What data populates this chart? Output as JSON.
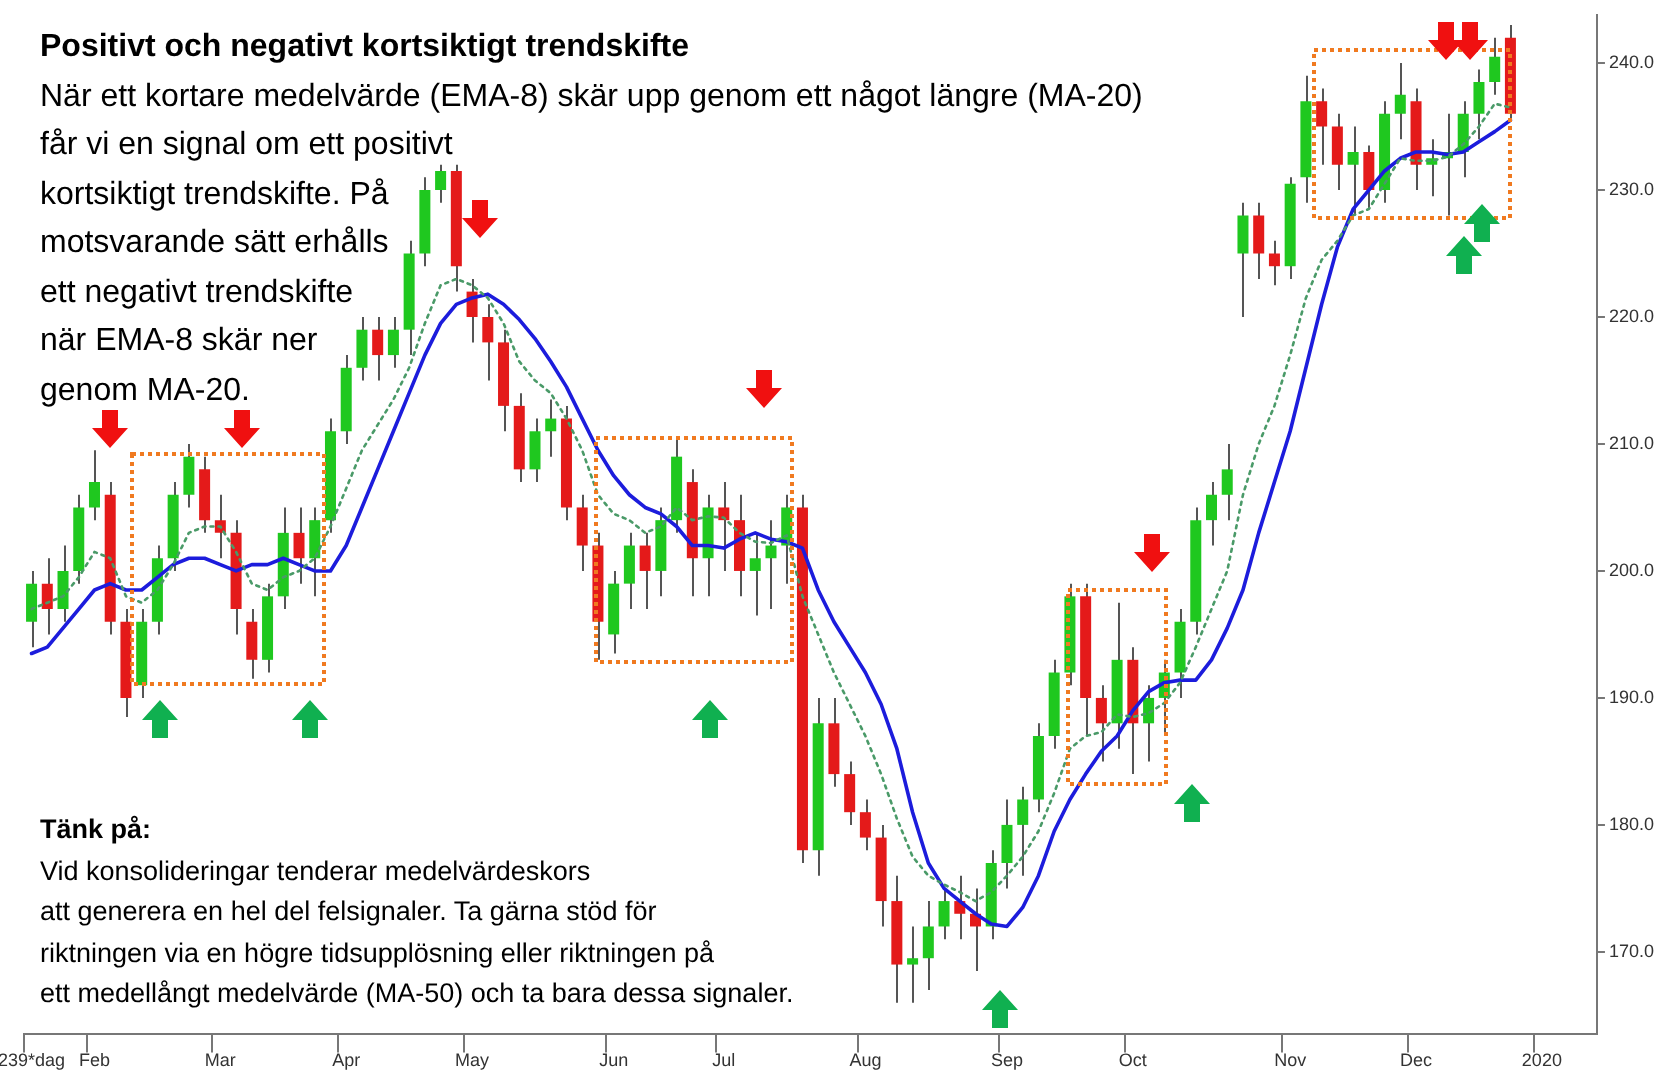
{
  "chart_data": {
    "type": "candlestick",
    "title": "Positivt och negativt kortsiktigt trendskifte",
    "annotations": [
      "När ett kortare medelvärde (EMA-8) skär upp genom ett något längre (MA-20)\nfår vi en signal om ett positivt\nkortsiktigt trendskifte. På\nmotsvarande sätt erhålls\nett negativt trendskifte\nnär EMA-8 skär ner\ngenom MA-20.",
      "Tänk på:\nVid konsolideringar tenderar medelvärdeskors\natt generera en hel del felsignaler. Ta gärna stöd för\nriktningen via en högre tidsupplösning eller riktningen på\nett medellångt medelvärde (MA-50) och ta bara dessa signaler."
    ],
    "categories": [
      "239*dag",
      null,
      null,
      null,
      "Feb",
      null,
      null,
      null,
      null,
      null,
      null,
      null,
      "Mar",
      null,
      null,
      null,
      null,
      null,
      null,
      null,
      "Apr",
      null,
      null,
      null,
      null,
      null,
      null,
      null,
      "May",
      null,
      null,
      null,
      null,
      null,
      null,
      null,
      null,
      "Jun",
      null,
      null,
      null,
      null,
      null,
      null,
      "Jul",
      null,
      null,
      null,
      null,
      null,
      null,
      null,
      null,
      "Aug",
      null,
      null,
      null,
      null,
      null,
      null,
      null,
      null,
      "Sep",
      null,
      null,
      null,
      null,
      null,
      null,
      null,
      "Oct",
      null,
      null,
      null,
      null,
      null,
      null,
      null,
      null,
      null,
      "Nov",
      null,
      null,
      null,
      null,
      null,
      null,
      null,
      "Dec",
      null,
      null,
      null,
      null,
      null,
      null,
      null,
      "2020",
      null,
      null,
      null
    ],
    "ohlc": [
      [
        196,
        200,
        194,
        199
      ],
      [
        199,
        201,
        195,
        197
      ],
      [
        197,
        202,
        196,
        200
      ],
      [
        200,
        206,
        199,
        205
      ],
      [
        205,
        209.5,
        204,
        207
      ],
      [
        206,
        207,
        195,
        196
      ],
      [
        196,
        197,
        188.5,
        190
      ],
      [
        191,
        197,
        190,
        196
      ],
      [
        196,
        202,
        195,
        201
      ],
      [
        201,
        207,
        200,
        206
      ],
      [
        206,
        210,
        205,
        209
      ],
      [
        208,
        209,
        203,
        204
      ],
      [
        204,
        206,
        201,
        203
      ],
      [
        203,
        204,
        195,
        197
      ],
      [
        196,
        197,
        191.5,
        193
      ],
      [
        193,
        199,
        192,
        198
      ],
      [
        198,
        205,
        197,
        203
      ],
      [
        203,
        205,
        199,
        201
      ],
      [
        201,
        205,
        198,
        204
      ],
      [
        204,
        212,
        203,
        211
      ],
      [
        211,
        217,
        210,
        216
      ],
      [
        216,
        220,
        215,
        219
      ],
      [
        219,
        220,
        215,
        217
      ],
      [
        217,
        220,
        216,
        219
      ],
      [
        219,
        226,
        217,
        225
      ],
      [
        225,
        231,
        224,
        230
      ],
      [
        230,
        232,
        229,
        231.5
      ],
      [
        231.5,
        232,
        222,
        224
      ],
      [
        222,
        223,
        218,
        220
      ],
      [
        220,
        221,
        215,
        218
      ],
      [
        218,
        219,
        211,
        213
      ],
      [
        213,
        214,
        207,
        208
      ],
      [
        208,
        212,
        207,
        211
      ],
      [
        211,
        213.5,
        209,
        212
      ],
      [
        212,
        213,
        204,
        205
      ],
      [
        205,
        206,
        200,
        202
      ],
      [
        202,
        203,
        193,
        196
      ],
      [
        195,
        200,
        193.5,
        199
      ],
      [
        199,
        203,
        197,
        202
      ],
      [
        202,
        203,
        197,
        200
      ],
      [
        200,
        205,
        198,
        204
      ],
      [
        204,
        210.5,
        203,
        209
      ],
      [
        207,
        208,
        198,
        201
      ],
      [
        201,
        206,
        198,
        205
      ],
      [
        205,
        207,
        200,
        204
      ],
      [
        204,
        206,
        198,
        200
      ],
      [
        200,
        203,
        196.5,
        201
      ],
      [
        201,
        204,
        197,
        202
      ],
      [
        202,
        206,
        199,
        205
      ],
      [
        205,
        206,
        177,
        178
      ],
      [
        178,
        190,
        176,
        188
      ],
      [
        188,
        190,
        183,
        184
      ],
      [
        184,
        185,
        180,
        181
      ],
      [
        181,
        182,
        178,
        179
      ],
      [
        179,
        180,
        172,
        174
      ],
      [
        174,
        176,
        166,
        169
      ],
      [
        169,
        172,
        166,
        169.5
      ],
      [
        169.5,
        174,
        167,
        172
      ],
      [
        172,
        175,
        171,
        174
      ],
      [
        174,
        176,
        171,
        173
      ],
      [
        173,
        175,
        168.5,
        172
      ],
      [
        172,
        178,
        171,
        177
      ],
      [
        177,
        182,
        175,
        180
      ],
      [
        180,
        183,
        176,
        182
      ],
      [
        182,
        188,
        181,
        187
      ],
      [
        187,
        193,
        186,
        192
      ],
      [
        192,
        199,
        191,
        198
      ],
      [
        198,
        199,
        187,
        190
      ],
      [
        190,
        191,
        185,
        188
      ],
      [
        188,
        197.5,
        186,
        193
      ],
      [
        193,
        194,
        184,
        188
      ],
      [
        188,
        191,
        185,
        190
      ],
      [
        190,
        193,
        187,
        192
      ],
      [
        192,
        197,
        190,
        196
      ],
      [
        196,
        205,
        195,
        204
      ],
      [
        204,
        207,
        202,
        206
      ],
      [
        206,
        210,
        204,
        208
      ],
      [
        225,
        229,
        220,
        228
      ],
      [
        228,
        229,
        223,
        225
      ],
      [
        225,
        226,
        222.5,
        224
      ],
      [
        224,
        231,
        223,
        230.5
      ],
      [
        231,
        239,
        229,
        237
      ],
      [
        237,
        238,
        232,
        235
      ],
      [
        235,
        236,
        230,
        232
      ],
      [
        232,
        235,
        228,
        233
      ],
      [
        233,
        233.5,
        228.5,
        230
      ],
      [
        230,
        237,
        229,
        236
      ],
      [
        236,
        240,
        234,
        237.5
      ],
      [
        237,
        238,
        230,
        232
      ],
      [
        232,
        234,
        229.5,
        232.5
      ],
      [
        232.5,
        236,
        228,
        233
      ],
      [
        233,
        237,
        231,
        236
      ],
      [
        236,
        239.5,
        234,
        238.5
      ],
      [
        238.5,
        242,
        237.5,
        240.5
      ],
      [
        242,
        243,
        235.5,
        236
      ],
      null,
      null,
      null,
      null,
      null
    ],
    "colors": [
      "#1fc81f",
      "#e41a1a",
      "#1fc81f",
      "#1fc81f",
      "#1fc81f",
      "#e41a1a",
      "#e41a1a",
      "#1fc81f",
      "#1fc81f",
      "#1fc81f",
      "#1fc81f",
      "#e41a1a",
      "#e41a1a",
      "#e41a1a",
      "#e41a1a",
      "#1fc81f",
      "#1fc81f",
      "#e41a1a",
      "#1fc81f",
      "#1fc81f",
      "#1fc81f",
      "#1fc81f",
      "#e41a1a",
      "#1fc81f",
      "#1fc81f",
      "#1fc81f",
      "#1fc81f",
      "#e41a1a",
      "#e41a1a",
      "#e41a1a",
      "#e41a1a",
      "#e41a1a",
      "#1fc81f",
      "#1fc81f",
      "#e41a1a",
      "#e41a1a",
      "#e41a1a",
      "#1fc81f",
      "#1fc81f",
      "#e41a1a",
      "#1fc81f",
      "#1fc81f",
      "#e41a1a",
      "#1fc81f",
      "#e41a1a",
      "#e41a1a",
      "#1fc81f",
      "#1fc81f",
      "#1fc81f",
      "#e41a1a",
      "#1fc81f",
      "#e41a1a",
      "#e41a1a",
      "#e41a1a",
      "#e41a1a",
      "#e41a1a",
      "#1fc81f",
      "#1fc81f",
      "#1fc81f",
      "#e41a1a",
      "#e41a1a",
      "#1fc81f",
      "#1fc81f",
      "#1fc81f",
      "#1fc81f",
      "#1fc81f",
      "#1fc81f",
      "#e41a1a",
      "#e41a1a",
      "#1fc81f",
      "#e41a1a",
      "#1fc81f",
      "#1fc81f",
      "#1fc81f",
      "#1fc81f",
      "#1fc81f",
      "#1fc81f",
      "#1fc81f",
      "#e41a1a",
      "#e41a1a",
      "#1fc81f",
      "#1fc81f",
      "#e41a1a",
      "#e41a1a",
      "#1fc81f",
      "#e41a1a",
      "#1fc81f",
      "#1fc81f",
      "#e41a1a",
      "#1fc81f",
      "#1fc81f",
      "#1fc81f",
      "#1fc81f",
      "#1fc81f",
      "#e41a1a",
      null,
      null,
      null,
      null,
      null
    ],
    "series": [
      {
        "type": "line",
        "color": "#4a9a68",
        "line_style": "dotted",
        "values": [
          197,
          197.5,
          198,
          199.5,
          201.5,
          201,
          198,
          197.5,
          198.5,
          200.5,
          203,
          203.5,
          203.5,
          201.5,
          199,
          198.5,
          199.5,
          200,
          201,
          203.5,
          206.5,
          209.5,
          211.5,
          213.5,
          216,
          219.5,
          222.5,
          223,
          222.5,
          221.5,
          219.5,
          216.5,
          215,
          214,
          212,
          209.5,
          206,
          204.5,
          204,
          203,
          203.5,
          205,
          204,
          204.3,
          204.2,
          203,
          202.3,
          202.2,
          202.8,
          198,
          195,
          192,
          189.5,
          187,
          184,
          180.5,
          177.5,
          176,
          175.3,
          174.7,
          174,
          174.7,
          176,
          177.5,
          179.5,
          182.5,
          186,
          187,
          187.3,
          188.7,
          188.5,
          188.8,
          189.6,
          191.2,
          194,
          197,
          200,
          206,
          210,
          213,
          217,
          221.5,
          224.5,
          226,
          228,
          228.5,
          230.5,
          232.5,
          232.3,
          232.3,
          232.6,
          233.6,
          235,
          236.8,
          236.5,
          null,
          null,
          null,
          null,
          null
        ]
      },
      {
        "type": "line",
        "color": "#1c1cdc",
        "line_style": "solid",
        "values": [
          193.5,
          194,
          195.5,
          197,
          198.5,
          199,
          198.5,
          198.5,
          199.5,
          200.5,
          201,
          201,
          200.5,
          200,
          200.5,
          200.5,
          201,
          200.5,
          200,
          200,
          202,
          205,
          208,
          211,
          214,
          217,
          219.5,
          221,
          221.5,
          221.8,
          221,
          219.8,
          218.3,
          216.5,
          214.5,
          212,
          209.5,
          207.5,
          206,
          205,
          204.5,
          203.5,
          202,
          202,
          201.8,
          202.5,
          203,
          202.5,
          202.3,
          201.8,
          198.5,
          196,
          194,
          192,
          189.5,
          186,
          181,
          177,
          175,
          174,
          173,
          172.2,
          172,
          173.5,
          176,
          179.5,
          182,
          184,
          185.8,
          187,
          189,
          190.5,
          191.2,
          191.4,
          191.4,
          193,
          195.5,
          198.5,
          203,
          207,
          211,
          216,
          221,
          225.5,
          228.5,
          230,
          231.5,
          232.5,
          233,
          233,
          232.8,
          233,
          233.8,
          234.6,
          235.5,
          null,
          null,
          null,
          null,
          null
        ]
      }
    ],
    "ylim": [
      163.5,
      243.8
    ],
    "yticks": [
      {
        "value": 170,
        "label": "170.0"
      },
      {
        "value": 180,
        "label": "180.0"
      },
      {
        "value": 190,
        "label": "190.0"
      },
      {
        "value": 200,
        "label": "200.0"
      },
      {
        "value": 210,
        "label": "210.0"
      },
      {
        "value": 220,
        "label": "220.0"
      },
      {
        "value": 230,
        "label": "230.0"
      },
      {
        "value": 240,
        "label": "240.0"
      }
    ],
    "marker": "none"
  }
}
